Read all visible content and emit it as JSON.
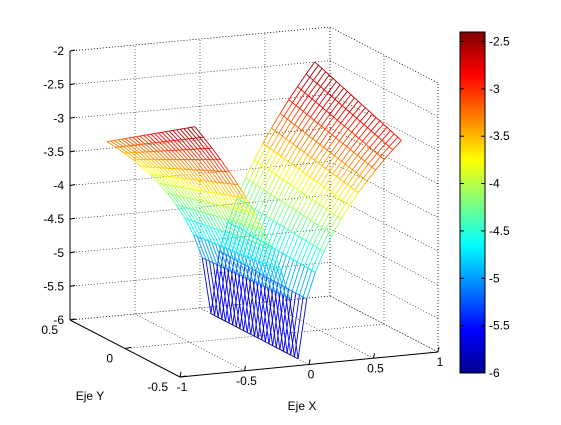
{
  "chart_data": {
    "type": "surface-mesh",
    "title": "",
    "xlabel": "Eje X",
    "ylabel": "Eje Y",
    "zlabel": "",
    "xlim": [
      -1,
      1
    ],
    "ylim": [
      -0.5,
      0.5
    ],
    "zlim": [
      -6,
      -2
    ],
    "x_ticks": [
      "-1",
      "-0.5",
      "0",
      "0.5",
      "1"
    ],
    "y_ticks": [
      "-0.5",
      "0",
      "0.5"
    ],
    "z_ticks": [
      "-2",
      "-2.5",
      "-3",
      "-3.5",
      "-4",
      "-4.5",
      "-5",
      "-5.5",
      "-6"
    ],
    "grid": true,
    "colormap": "jet",
    "colorbar": {
      "range": [
        -6,
        -2.4
      ],
      "ticks": [
        "-2.5",
        "-3",
        "-3.5",
        "-4",
        "-4.5",
        "-5",
        "-5.5",
        "-6"
      ]
    },
    "surface": {
      "x_range": [
        -0.8,
        0.8
      ],
      "y_range": [
        -0.4,
        0.4
      ],
      "z_min": -6,
      "z_max": -2.4,
      "shape": "saddle-like surface with a deep valley along x = 0 and high ridges on either side"
    }
  }
}
